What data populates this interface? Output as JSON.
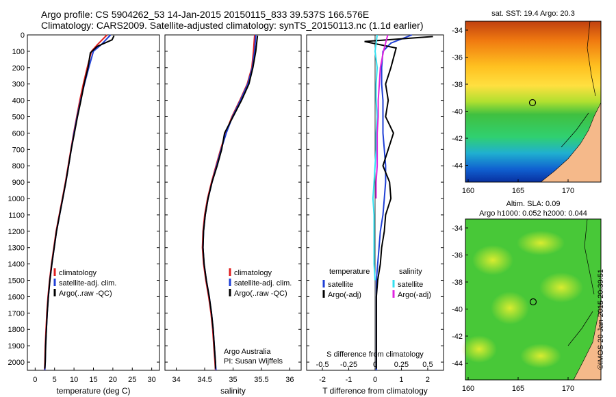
{
  "header": {
    "line1": "Argo profile: CS 5904262_53 14-Jan-2015 20150115_833 39.537S 166.576E",
    "line2": "Climatology: CARS2009. Satellite-adjusted climatology: synTS_20150113.nc (1.1d earlier)"
  },
  "colors": {
    "climatology": "#e02020",
    "satellite": "#1f3fd6",
    "argo": "#000000",
    "sat_salinity": "#33e0f0",
    "argo_salinity_adj": "#e024e0",
    "land": "#f5b98a"
  },
  "chart_data": [
    {
      "type": "line",
      "name": "temperature profile",
      "xlabel": "temperature (deg C)",
      "ylabel": "",
      "xlim": [
        -2,
        32
      ],
      "ylim": [
        2050,
        0
      ],
      "xticks": [
        0,
        5,
        10,
        15,
        20,
        25,
        30
      ],
      "yticks": [
        0,
        100,
        200,
        300,
        400,
        500,
        600,
        700,
        800,
        900,
        1000,
        1100,
        1200,
        1300,
        1400,
        1500,
        1600,
        1700,
        1800,
        1900,
        2000
      ],
      "legend": [
        "climatology",
        "satellite-adj. clim.",
        "Argo(..raw -QC)"
      ],
      "legend_position": "lower-center",
      "series": [
        {
          "name": "climatology",
          "color": "#e02020",
          "x": [
            18.5,
            16,
            14.5,
            13.4,
            12.4,
            11.5,
            10.7,
            9.9,
            9.2,
            8.5,
            7.8,
            7.0,
            6.2,
            5.4,
            4.8,
            4.2,
            3.7,
            3.3,
            3.0,
            2.8,
            2.6,
            2.5,
            2.4
          ],
          "y": [
            0,
            60,
            100,
            200,
            300,
            400,
            500,
            600,
            700,
            800,
            900,
            1000,
            1100,
            1200,
            1300,
            1400,
            1500,
            1600,
            1700,
            1800,
            1900,
            2000,
            2050
          ]
        },
        {
          "name": "satellite-adj. clim.",
          "color": "#1f3fd6",
          "x": [
            19.4,
            17,
            15,
            13.8,
            12.7,
            11.7,
            10.8,
            10.0,
            9.3,
            8.6,
            7.9,
            7.1,
            6.3,
            5.5,
            4.9,
            4.3,
            3.8,
            3.4,
            3.1,
            2.9,
            2.7,
            2.6,
            2.5
          ],
          "y": [
            0,
            60,
            100,
            200,
            300,
            400,
            500,
            600,
            700,
            800,
            900,
            1000,
            1100,
            1200,
            1300,
            1400,
            1500,
            1600,
            1700,
            1800,
            1900,
            2000,
            2050
          ]
        },
        {
          "name": "Argo(..raw -QC)",
          "color": "#000000",
          "x": [
            20.3,
            19.8,
            16,
            14.2,
            13.6,
            12.6,
            11.8,
            10.9,
            10.1,
            9.3,
            8.6,
            7.9,
            7.1,
            6.3,
            5.5,
            4.9,
            4.3,
            3.8,
            3.4,
            3.1,
            2.9,
            2.7,
            2.6,
            2.5
          ],
          "y": [
            5,
            30,
            70,
            110,
            200,
            300,
            400,
            500,
            600,
            700,
            800,
            900,
            1000,
            1100,
            1200,
            1300,
            1400,
            1500,
            1600,
            1700,
            1800,
            1900,
            2000,
            2040
          ]
        }
      ]
    },
    {
      "type": "line",
      "name": "salinity profile",
      "xlabel": "salinity",
      "xlim": [
        33.8,
        36.2
      ],
      "ylim": [
        2050,
        0
      ],
      "xticks": [
        34,
        34.5,
        35,
        35.5,
        36
      ],
      "xticklabels": [
        "34",
        "34.5",
        "35",
        "35.5",
        "36"
      ],
      "legend": [
        "climatology",
        "satellite-adj. clim.",
        "Argo(..raw -QC)"
      ],
      "legend_position": "lower-center",
      "annotation": [
        "Argo Australia",
        "PI: Susan Wijffels"
      ],
      "series": [
        {
          "name": "climatology",
          "color": "#e02020",
          "x": [
            35.38,
            35.36,
            35.33,
            35.25,
            35.12,
            34.98,
            34.87,
            34.78,
            34.7,
            34.62,
            34.55,
            34.5,
            34.47,
            34.46,
            34.48,
            34.52,
            34.57,
            34.61,
            34.64,
            34.66,
            34.68,
            34.69
          ],
          "y": [
            0,
            100,
            200,
            300,
            400,
            500,
            600,
            700,
            800,
            900,
            1000,
            1100,
            1200,
            1300,
            1400,
            1500,
            1600,
            1700,
            1800,
            1900,
            2000,
            2050
          ]
        },
        {
          "name": "satellite-adj. clim.",
          "color": "#1f3fd6",
          "x": [
            35.4,
            35.38,
            35.34,
            35.26,
            35.13,
            34.99,
            34.88,
            34.79,
            34.71,
            34.63,
            34.56,
            34.51,
            34.48,
            34.47,
            34.49,
            34.53,
            34.58,
            34.62,
            34.65,
            34.67,
            34.69,
            34.7
          ],
          "y": [
            0,
            100,
            200,
            300,
            400,
            500,
            600,
            700,
            800,
            900,
            1000,
            1100,
            1200,
            1300,
            1400,
            1500,
            1600,
            1700,
            1800,
            1900,
            2000,
            2050
          ]
        },
        {
          "name": "Argo(..raw -QC)",
          "color": "#000000",
          "x": [
            35.43,
            35.4,
            35.35,
            35.28,
            35.15,
            35.0,
            34.85,
            34.8,
            34.72,
            34.63,
            34.56,
            34.51,
            34.48,
            34.47,
            34.49,
            34.53,
            34.58,
            34.62,
            34.65,
            34.67,
            34.69,
            34.69
          ],
          "y": [
            5,
            100,
            200,
            300,
            400,
            500,
            600,
            700,
            800,
            900,
            1000,
            1100,
            1200,
            1300,
            1400,
            1500,
            1600,
            1700,
            1800,
            1900,
            2000,
            2040
          ]
        }
      ]
    },
    {
      "type": "line",
      "name": "difference from climatology",
      "xlabel": "T difference from climatology",
      "xlabel_top": "S difference from climatology",
      "xlim": [
        -2.6,
        2.6
      ],
      "ylim": [
        2050,
        0
      ],
      "xticks_T": [
        -2,
        -1,
        0,
        1,
        2
      ],
      "xticks_S": [
        -0.5,
        -0.25,
        0,
        0.25,
        0.5
      ],
      "legend_temperature": {
        "title": "temperature",
        "items": [
          "satellite",
          "Argo(-adj)"
        ]
      },
      "legend_salinity": {
        "title": "salinity",
        "items": [
          "satellite",
          "Argo(-adj)"
        ]
      },
      "series": [
        {
          "name": "temperature satellite",
          "color": "#1f3fd6",
          "x": [
            1.4,
            0.6,
            0.3,
            0.25,
            0.25,
            0.3,
            0.3,
            0.3,
            0.35,
            0.4,
            0.4,
            0.35,
            0.3,
            0.2,
            0.15,
            0.1,
            0.05,
            0.05,
            0.05,
            0.05,
            0.05
          ],
          "y": [
            0,
            50,
            100,
            200,
            300,
            400,
            500,
            600,
            700,
            800,
            900,
            1000,
            1100,
            1200,
            1300,
            1400,
            1500,
            1600,
            1700,
            1900,
            2050
          ]
        },
        {
          "name": "temperature Argo(-adj)",
          "color": "#000000",
          "x": [
            2.2,
            -0.4,
            0.8,
            0.6,
            0.4,
            0.5,
            0.4,
            0.7,
            0.5,
            0.3,
            0.55,
            0.6,
            0.4,
            0.35,
            0.25,
            0.2,
            0.1,
            0.05,
            0.05,
            0.05,
            0.05
          ],
          "y": [
            10,
            40,
            80,
            200,
            300,
            400,
            500,
            600,
            700,
            800,
            900,
            1000,
            1100,
            1200,
            1300,
            1400,
            1500,
            1600,
            1700,
            1900,
            2040
          ]
        },
        {
          "name": "salinity satellite",
          "color": "#33e0f0",
          "x": [
            0.02,
            0.0,
            0.02,
            0.01,
            0.01,
            0.02,
            0.01,
            0.01,
            0.0,
            -0.01,
            -0.02,
            -0.01,
            -0.01,
            -0.01,
            -0.01,
            0.0
          ],
          "y": [
            0,
            100,
            200,
            300,
            400,
            500,
            600,
            700,
            800,
            900,
            1000,
            1100,
            1200,
            1300,
            1400,
            1500
          ]
        },
        {
          "name": "salinity Argo(-adj)",
          "color": "#e024e0",
          "x": [
            0.12,
            0.08,
            0.05,
            0.04,
            0.03,
            0.03,
            0.02,
            0.02,
            0.02,
            0.01,
            0.01
          ],
          "y": [
            0,
            100,
            200,
            300,
            400,
            500,
            600,
            700,
            800,
            900,
            1000
          ]
        }
      ]
    }
  ],
  "maps": {
    "sst": {
      "title": "sat. SST: 19.4  Argo: 20.3",
      "xticks": [
        "160",
        "165",
        "170"
      ],
      "yticks": [
        "-34",
        "-36",
        "-38",
        "-40",
        "-42",
        "-44"
      ],
      "float_position": {
        "lon": 166.576,
        "lat": -39.537
      }
    },
    "sla": {
      "title_line1": "Altim. SLA: 0.09",
      "title_line2": "Argo h1000: 0.052  h2000: 0.044",
      "xticks": [
        "160",
        "165",
        "170"
      ],
      "yticks": [
        "-34",
        "-36",
        "-38",
        "-40",
        "-42",
        "-44"
      ],
      "float_position": {
        "lon": 166.576,
        "lat": -39.537
      }
    }
  },
  "footer": {
    "credit": "©IMOS 20-Jan-2015 20:39:51"
  }
}
